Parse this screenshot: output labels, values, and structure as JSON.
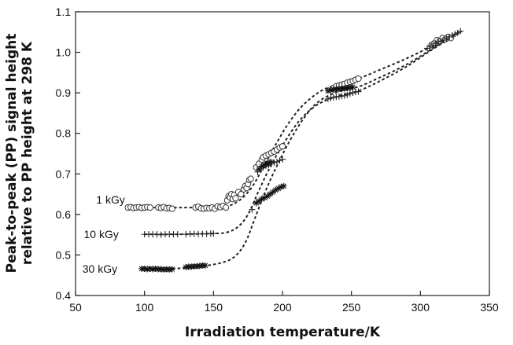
{
  "chart_data": {
    "type": "scatter",
    "xlabel": "Irradiation temperature/K",
    "ylabel_lines": [
      "Peak-to-peak (PP) signal height",
      "relative to PP height at 298 K"
    ],
    "xlim": [
      50,
      350
    ],
    "ylim": [
      0.4,
      1.1
    ],
    "xticks": [
      "50",
      "100",
      "150",
      "200",
      "250",
      "300",
      "350"
    ],
    "yticks": [
      "0.4",
      "0.5",
      "0.6",
      "0.7",
      "0.8",
      "0.9",
      "1.0",
      "1.1"
    ],
    "grid": false,
    "series": [
      {
        "name": "1 kGy",
        "marker": "circle",
        "points": [
          [
            88,
            0.617
          ],
          [
            90,
            0.618
          ],
          [
            92,
            0.616
          ],
          [
            94,
            0.617
          ],
          [
            96,
            0.618
          ],
          [
            98,
            0.616
          ],
          [
            100,
            0.617
          ],
          [
            102,
            0.618
          ],
          [
            104,
            0.617
          ],
          [
            110,
            0.617
          ],
          [
            112,
            0.616
          ],
          [
            114,
            0.618
          ],
          [
            116,
            0.615
          ],
          [
            118,
            0.616
          ],
          [
            120,
            0.614
          ],
          [
            137,
            0.617
          ],
          [
            139,
            0.619
          ],
          [
            141,
            0.615
          ],
          [
            143,
            0.614
          ],
          [
            145,
            0.616
          ],
          [
            147,
            0.615
          ],
          [
            149,
            0.617
          ],
          [
            151,
            0.614
          ],
          [
            153,
            0.62
          ],
          [
            155,
            0.618
          ],
          [
            157,
            0.621
          ],
          [
            159,
            0.617
          ],
          [
            160,
            0.635
          ],
          [
            161,
            0.645
          ],
          [
            162,
            0.642
          ],
          [
            163,
            0.65
          ],
          [
            164,
            0.638
          ],
          [
            165,
            0.648
          ],
          [
            166,
            0.64
          ],
          [
            168,
            0.655
          ],
          [
            170,
            0.65
          ],
          [
            172,
            0.662
          ],
          [
            173,
            0.67
          ],
          [
            174,
            0.665
          ],
          [
            175,
            0.675
          ],
          [
            176,
            0.685
          ],
          [
            177,
            0.688
          ],
          [
            181,
            0.716
          ],
          [
            183,
            0.725
          ],
          [
            185,
            0.735
          ],
          [
            186,
            0.741
          ],
          [
            188,
            0.745
          ],
          [
            190,
            0.748
          ],
          [
            192,
            0.752
          ],
          [
            194,
            0.755
          ],
          [
            196,
            0.76
          ],
          [
            198,
            0.765
          ],
          [
            200,
            0.768
          ],
          [
            237,
            0.912
          ],
          [
            239,
            0.916
          ],
          [
            241,
            0.918
          ],
          [
            243,
            0.92
          ],
          [
            245,
            0.922
          ],
          [
            247,
            0.925
          ],
          [
            249,
            0.927
          ],
          [
            251,
            0.929
          ],
          [
            253,
            0.932
          ],
          [
            255,
            0.935
          ],
          [
            308,
            1.018
          ],
          [
            310,
            1.022
          ],
          [
            312,
            1.03
          ],
          [
            314,
            1.028
          ],
          [
            316,
            1.035
          ],
          [
            318,
            1.032
          ],
          [
            320,
            1.038
          ],
          [
            322,
            1.035
          ]
        ]
      },
      {
        "name": "10 kGy",
        "marker": "plus",
        "points": [
          [
            100,
            0.551
          ],
          [
            103,
            0.551
          ],
          [
            106,
            0.551
          ],
          [
            109,
            0.551
          ],
          [
            112,
            0.55
          ],
          [
            115,
            0.551
          ],
          [
            118,
            0.551
          ],
          [
            121,
            0.551
          ],
          [
            124,
            0.551
          ],
          [
            130,
            0.551
          ],
          [
            133,
            0.552
          ],
          [
            136,
            0.552
          ],
          [
            139,
            0.552
          ],
          [
            142,
            0.552
          ],
          [
            145,
            0.552
          ],
          [
            148,
            0.553
          ],
          [
            150,
            0.553
          ],
          [
            178,
            0.612
          ],
          [
            182,
            0.705
          ],
          [
            184,
            0.712
          ],
          [
            186,
            0.716
          ],
          [
            188,
            0.72
          ],
          [
            190,
            0.722
          ],
          [
            192,
            0.725
          ],
          [
            194,
            0.728
          ],
          [
            196,
            0.73
          ],
          [
            198,
            0.733
          ],
          [
            200,
            0.736
          ],
          [
            233,
            0.885
          ],
          [
            235,
            0.887
          ],
          [
            237,
            0.889
          ],
          [
            239,
            0.89
          ],
          [
            241,
            0.891
          ],
          [
            243,
            0.892
          ],
          [
            245,
            0.893
          ],
          [
            247,
            0.895
          ],
          [
            249,
            0.898
          ],
          [
            251,
            0.9
          ],
          [
            253,
            0.902
          ],
          [
            255,
            0.903
          ],
          [
            305,
            1.01
          ],
          [
            307,
            1.014
          ],
          [
            309,
            1.018
          ],
          [
            311,
            1.022
          ],
          [
            313,
            1.026
          ],
          [
            315,
            1.028
          ],
          [
            317,
            1.03
          ],
          [
            319,
            1.034
          ],
          [
            321,
            1.038
          ],
          [
            323,
            1.042
          ],
          [
            325,
            1.045
          ],
          [
            327,
            1.048
          ],
          [
            329,
            1.052
          ]
        ]
      },
      {
        "name": "30 kGy",
        "marker": "asterisk",
        "points": [
          [
            98,
            0.466
          ],
          [
            100,
            0.466
          ],
          [
            102,
            0.465
          ],
          [
            104,
            0.466
          ],
          [
            106,
            0.465
          ],
          [
            108,
            0.466
          ],
          [
            110,
            0.465
          ],
          [
            112,
            0.465
          ],
          [
            114,
            0.464
          ],
          [
            116,
            0.465
          ],
          [
            118,
            0.464
          ],
          [
            120,
            0.465
          ],
          [
            130,
            0.47
          ],
          [
            132,
            0.471
          ],
          [
            134,
            0.471
          ],
          [
            136,
            0.472
          ],
          [
            138,
            0.472
          ],
          [
            140,
            0.473
          ],
          [
            142,
            0.474
          ],
          [
            144,
            0.474
          ],
          [
            181,
            0.628
          ],
          [
            183,
            0.633
          ],
          [
            185,
            0.638
          ],
          [
            187,
            0.641
          ],
          [
            189,
            0.645
          ],
          [
            191,
            0.65
          ],
          [
            193,
            0.655
          ],
          [
            195,
            0.66
          ],
          [
            197,
            0.664
          ],
          [
            199,
            0.668
          ],
          [
            201,
            0.67
          ],
          [
            183,
            0.712
          ],
          [
            185,
            0.719
          ],
          [
            187,
            0.722
          ],
          [
            189,
            0.726
          ],
          [
            191,
            0.73
          ],
          [
            233,
            0.905
          ],
          [
            235,
            0.907
          ],
          [
            237,
            0.908
          ],
          [
            239,
            0.909
          ],
          [
            241,
            0.91
          ],
          [
            243,
            0.91
          ],
          [
            245,
            0.911
          ],
          [
            247,
            0.912
          ],
          [
            249,
            0.913
          ],
          [
            251,
            0.914
          ]
        ]
      }
    ],
    "fits": [
      {
        "series": "1 kGy",
        "points": [
          [
            88,
            0.617
          ],
          [
            120,
            0.617
          ],
          [
            140,
            0.617
          ],
          [
            155,
            0.618
          ],
          [
            162,
            0.622
          ],
          [
            170,
            0.638
          ],
          [
            178,
            0.668
          ],
          [
            186,
            0.716
          ],
          [
            195,
            0.772
          ],
          [
            205,
            0.828
          ],
          [
            215,
            0.87
          ],
          [
            228,
            0.905
          ],
          [
            240,
            0.92
          ],
          [
            255,
            0.935
          ],
          [
            270,
            0.956
          ],
          [
            290,
            0.985
          ],
          [
            310,
            1.018
          ],
          [
            322,
            1.038
          ]
        ]
      },
      {
        "series": "10 kGy",
        "points": [
          [
            100,
            0.551
          ],
          [
            125,
            0.551
          ],
          [
            150,
            0.553
          ],
          [
            160,
            0.556
          ],
          [
            168,
            0.57
          ],
          [
            175,
            0.6
          ],
          [
            182,
            0.652
          ],
          [
            190,
            0.71
          ],
          [
            200,
            0.77
          ],
          [
            212,
            0.83
          ],
          [
            225,
            0.87
          ],
          [
            240,
            0.892
          ],
          [
            255,
            0.905
          ],
          [
            270,
            0.928
          ],
          [
            290,
            0.965
          ],
          [
            310,
            1.01
          ],
          [
            330,
            1.052
          ]
        ]
      },
      {
        "series": "30 kGy",
        "points": [
          [
            98,
            0.466
          ],
          [
            120,
            0.466
          ],
          [
            140,
            0.472
          ],
          [
            155,
            0.48
          ],
          [
            165,
            0.495
          ],
          [
            173,
            0.53
          ],
          [
            180,
            0.59
          ],
          [
            188,
            0.66
          ],
          [
            196,
            0.72
          ],
          [
            205,
            0.78
          ],
          [
            215,
            0.835
          ],
          [
            225,
            0.875
          ],
          [
            238,
            0.9
          ],
          [
            255,
            0.915
          ],
          [
            270,
            0.937
          ],
          [
            290,
            0.97
          ],
          [
            310,
            1.012
          ],
          [
            328,
            1.05
          ]
        ]
      }
    ],
    "annotations": [
      {
        "text": "1 kGy",
        "x": 65,
        "y": 0.637
      },
      {
        "text": "10 kGy",
        "x": 56,
        "y": 0.551
      },
      {
        "text": "30 kGy",
        "x": 55,
        "y": 0.466
      }
    ]
  }
}
